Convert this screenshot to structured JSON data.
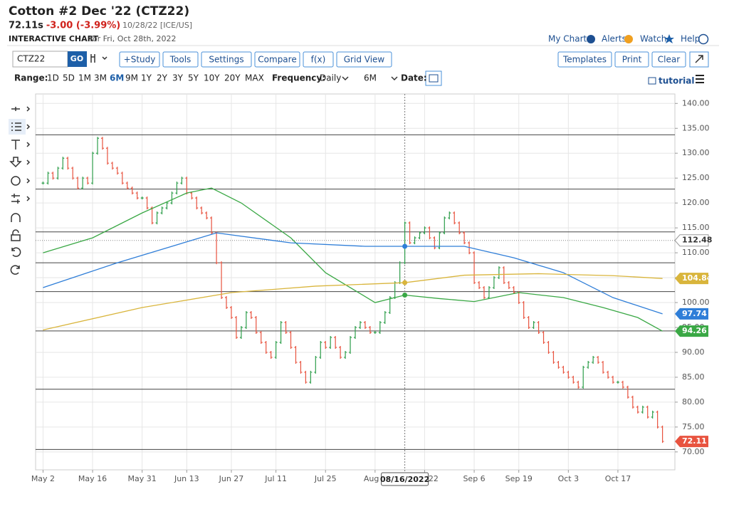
{
  "header": {
    "title": "Cotton #2 Dec '22 (CTZ22)",
    "price": "72.11s",
    "change": "-3.00 (-3.99%)",
    "meta": "10/28/22 [ICE/US]",
    "chart_label": "INTERACTIVE CHART",
    "date_note": "for Fri, Oct 28th, 2022",
    "links": [
      "My Charts",
      "Alerts",
      "Watch",
      "Help"
    ]
  },
  "toolbar": {
    "symbol": "CTZ22",
    "go": "GO",
    "buttons_left": [
      "+Study",
      "Tools",
      "Settings",
      "Compare",
      "f(x)",
      "Grid View"
    ],
    "buttons_right": [
      "Templates",
      "Print",
      "Clear"
    ]
  },
  "range_bar": {
    "range_label": "Range:",
    "ranges": [
      "1D",
      "5D",
      "1M",
      "3M",
      "6M",
      "9M",
      "1Y",
      "2Y",
      "3Y",
      "5Y",
      "10Y",
      "20Y",
      "MAX"
    ],
    "active_range": 4,
    "frequency_label": "Frequency:",
    "frequency": "Daily",
    "period": "6M",
    "date_label": "Date:",
    "tutorial": "tutorial"
  },
  "chart_data": {
    "type": "price_bars",
    "xlim": [
      -1.5,
      127.5
    ],
    "xticks": [
      {
        "value": 0,
        "label": "May 2"
      },
      {
        "value": 10,
        "label": "May 16"
      },
      {
        "value": 20,
        "label": "May 31"
      },
      {
        "value": 29,
        "label": "Jun 13"
      },
      {
        "value": 38,
        "label": "Jun 27"
      },
      {
        "value": 47,
        "label": "Jul 11"
      },
      {
        "value": 57,
        "label": "Jul 25"
      },
      {
        "value": 67,
        "label": "Aug 8"
      },
      {
        "value": 77,
        "label": "Aug 22"
      },
      {
        "value": 87,
        "label": "Sep 6"
      },
      {
        "value": 96,
        "label": "Sep 19"
      },
      {
        "value": 106,
        "label": "Oct 3"
      },
      {
        "value": 116,
        "label": "Oct 17"
      }
    ],
    "ylim": [
      66.4,
      141.9
    ],
    "yticks": [
      {
        "value": 70,
        "label": "70.00"
      },
      {
        "value": 75,
        "label": "75.00"
      },
      {
        "value": 80,
        "label": "80.00"
      },
      {
        "value": 85,
        "label": "85.00"
      },
      {
        "value": 90,
        "label": "90.00"
      },
      {
        "value": 95,
        "label": "95.00"
      },
      {
        "value": 100,
        "label": "100.00"
      },
      {
        "value": 105,
        "label": "105.00"
      },
      {
        "value": 110,
        "label": "110.00"
      },
      {
        "value": 115,
        "label": "115.00"
      },
      {
        "value": 120,
        "label": "120.00"
      },
      {
        "value": 125,
        "label": "125.00"
      },
      {
        "value": 130,
        "label": "130.00"
      },
      {
        "value": 135,
        "label": "135.00"
      },
      {
        "value": 140,
        "label": "140.00"
      }
    ],
    "grid": true,
    "up_color": "#2e9e4b",
    "down_color": "#e8533f",
    "price": {
      "x": [
        0,
        1,
        2,
        3,
        4,
        5,
        6,
        7,
        8,
        9,
        10,
        11,
        12,
        13,
        14,
        15,
        16,
        17,
        18,
        19,
        20,
        21,
        22,
        23,
        24,
        25,
        26,
        27,
        28,
        29,
        30,
        31,
        32,
        33,
        34,
        35,
        36,
        37,
        38,
        39,
        40,
        41,
        42,
        43,
        44,
        45,
        46,
        47,
        48,
        49,
        50,
        51,
        52,
        53,
        54,
        55,
        56,
        57,
        58,
        59,
        60,
        61,
        62,
        63,
        64,
        65,
        66,
        67,
        68,
        69,
        70,
        71,
        72,
        73,
        74,
        75,
        76,
        77,
        78,
        79,
        80,
        81,
        82,
        83,
        84,
        85,
        86,
        87,
        88,
        89,
        90,
        91,
        92,
        93,
        94,
        95,
        96,
        97,
        98,
        99,
        100,
        101,
        102,
        103,
        104,
        105,
        106,
        107,
        108,
        109,
        110,
        111,
        112,
        113,
        114,
        115,
        116,
        117,
        118,
        119,
        120,
        121,
        122,
        123,
        124,
        125
      ],
      "values": [
        124,
        126,
        125,
        127,
        129,
        127,
        125,
        123,
        125,
        124,
        130,
        133,
        131,
        128,
        127,
        126,
        124,
        123,
        122,
        121,
        121,
        119,
        116,
        118,
        119,
        120,
        122,
        124,
        125,
        122,
        121,
        119,
        118,
        117,
        114,
        108,
        101,
        99,
        97,
        93,
        95,
        98,
        97,
        94,
        92,
        90,
        89,
        92,
        96,
        94,
        91,
        88,
        86,
        84,
        86,
        89,
        92,
        91,
        93,
        91,
        89,
        90,
        93,
        95,
        96,
        95,
        94,
        94,
        96,
        98,
        101,
        104,
        108,
        116,
        112,
        113,
        114,
        115,
        113,
        111,
        114,
        117,
        118,
        116,
        114,
        112,
        110,
        104,
        103,
        101,
        103,
        105,
        107,
        104,
        103,
        102,
        100,
        97,
        95,
        96,
        94,
        92,
        90,
        88,
        87,
        86,
        85,
        84,
        83,
        87,
        88,
        89,
        88,
        86,
        85,
        84,
        84,
        83,
        81,
        79,
        78,
        79,
        77,
        78,
        75,
        72.11
      ]
    },
    "series": [
      {
        "color": "#3aa845",
        "x": [
          0,
          10,
          20,
          29,
          34,
          40,
          50,
          57,
          67,
          73,
          80,
          87,
          96,
          105,
          113,
          120,
          125
        ],
        "values": [
          110,
          113,
          118,
          122,
          123,
          120,
          113,
          106,
          100,
          101.5,
          100.8,
          100.2,
          102,
          101,
          99,
          97,
          94.26
        ]
      },
      {
        "color": "#2f7ed8",
        "x": [
          0,
          15,
          25,
          35,
          50,
          65,
          73,
          85,
          95,
          105,
          115,
          125
        ],
        "values": [
          103,
          108,
          111,
          114,
          112,
          111.3,
          111.3,
          111.3,
          109,
          106,
          101,
          97.74
        ]
      },
      {
        "color": "#d9b53c",
        "x": [
          0,
          20,
          38,
          55,
          73,
          85,
          100,
          115,
          125
        ],
        "values": [
          94.5,
          99,
          102,
          103.3,
          104,
          105.5,
          105.8,
          105.4,
          104.84
        ]
      }
    ],
    "levels": [
      133.7,
      122.8,
      114.2,
      108,
      102.2,
      94.3,
      82.6,
      70.5
    ],
    "reference_line": 112.48,
    "crosshair": {
      "x": 73,
      "label": "08/16/2022"
    }
  }
}
